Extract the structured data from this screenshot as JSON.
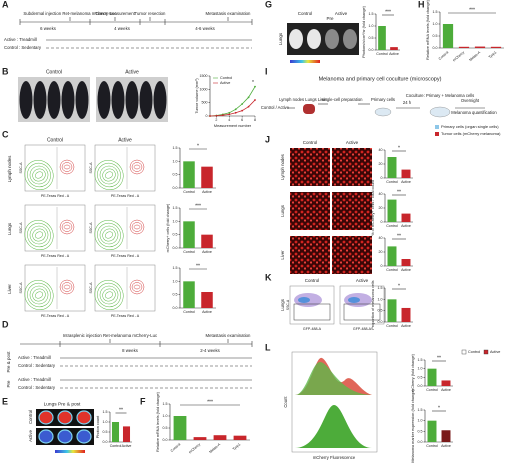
{
  "letters": [
    "A",
    "B",
    "C",
    "D",
    "E",
    "F",
    "G",
    "H",
    "I",
    "J",
    "K",
    "L"
  ],
  "A": {
    "labels": [
      "Subdermal injection Ret-melanoma mCherry-Luc",
      "Tumor measurement",
      "Tumor resection",
      "Metastasis examination"
    ],
    "durations": [
      "6 weeks",
      "4 weeks",
      "4-6 weeks"
    ],
    "groups": [
      "Active : Treadmill",
      "Control : Sedentary"
    ]
  },
  "B": {
    "columns": [
      "Control",
      "Active"
    ]
  },
  "C": {
    "columns": [
      "Control",
      "Active"
    ],
    "rows": [
      "Lymph nodes",
      "Lungs",
      "Liver"
    ],
    "xlabel": "PE-Texas Red - A",
    "ylabel": "SSC-A"
  },
  "D": {
    "labels": [
      "Intrasplenic injection Ret-melanoma mCherry-Luc",
      "Metastasis examination"
    ],
    "durations": [
      "8 weeks",
      "2-4 weeks"
    ],
    "groups": [
      "Active : Treadmill",
      "Control : Sedentary",
      "Active : Treadmill",
      "Control : Sedentary"
    ],
    "sides": [
      "Pre & post",
      "Pre"
    ]
  },
  "E": {
    "title": "Lungs Pre & post",
    "rows": [
      "Control",
      "Active"
    ]
  },
  "G": {
    "header": "Pre",
    "columns": [
      "Control",
      "Active"
    ],
    "row": "Lungs"
  },
  "I": {
    "title": "Melanoma and primary cell coculture (microscopy)",
    "steps": [
      "Control / Active",
      "Lymph nodes Lungs Liver",
      "single-cell preparation",
      "Primary cells",
      "24 h",
      "Coculture: Primary + Melanoma cells",
      "Overnight",
      "Melanoma quantification"
    ]
  },
  "J": {
    "columns": [
      "Control",
      "Active"
    ],
    "rows": [
      "Lymph nodes",
      "Lungs",
      "Liver"
    ],
    "legend": [
      "Primary cells (organ single cells)",
      "Tumor cells (mCherry melanoma)"
    ]
  },
  "K": {
    "columns": [
      "Control",
      "Active"
    ],
    "row": "Lungs",
    "xlabel": "GFP-488-A",
    "ylabel": "SSC-A"
  },
  "L": {
    "legend": [
      "Control",
      "Active"
    ],
    "ylabel": "Count",
    "xlabel": "mCherry Fluorescence"
  },
  "chart_data": [
    {
      "type": "line",
      "xlabel": "Measurement number",
      "ylabel": "Tumor volume (mm³)",
      "x": [
        1,
        2,
        3,
        4,
        5,
        6,
        7,
        8
      ],
      "xlim": [
        1,
        8
      ],
      "xticks": [
        2,
        4,
        6,
        8
      ],
      "ylim": [
        0,
        1500
      ],
      "yticks": [
        0,
        500,
        1000,
        1500
      ],
      "annotation": "*",
      "series": [
        {
          "name": "Control",
          "color": "#4dac3a",
          "values": [
            0,
            20,
            60,
            120,
            250,
            450,
            700,
            1100
          ]
        },
        {
          "name": "Active",
          "color": "#c8262c",
          "values": [
            0,
            10,
            30,
            60,
            120,
            200,
            350,
            600
          ]
        }
      ]
    },
    {
      "type": "bar",
      "categories": [
        "Control",
        "Active"
      ],
      "values": [
        1.0,
        0.8
      ],
      "colors": [
        "#4dac3a",
        "#c8262c"
      ],
      "ylim": [
        0,
        1.5
      ],
      "yticks": [
        {
          "value": 0,
          "label": "0.0"
        },
        0.5,
        {
          "value": 1,
          "label": "1.0"
        },
        1.5
      ],
      "annotation": "*"
    },
    {
      "type": "bar",
      "ylabel": "mCherry+ cells (fold change)",
      "categories": [
        "Control",
        "Active"
      ],
      "values": [
        1.0,
        0.5
      ],
      "colors": [
        "#4dac3a",
        "#c8262c"
      ],
      "ylim": [
        0,
        1.5
      ],
      "yticks": [
        {
          "value": 0,
          "label": "0.0"
        },
        0.5,
        {
          "value": 1,
          "label": "1.0"
        },
        1.5
      ],
      "annotation": "***"
    },
    {
      "type": "bar",
      "categories": [
        "Control",
        "Active"
      ],
      "values": [
        1.0,
        0.6
      ],
      "colors": [
        "#4dac3a",
        "#c8262c"
      ],
      "ylim": [
        0,
        1.5
      ],
      "yticks": [
        {
          "value": 0,
          "label": "0.0"
        },
        0.5,
        {
          "value": 1,
          "label": "1.0"
        },
        1.5
      ],
      "annotation": "**"
    },
    {
      "type": "bar",
      "ylabel": "Photon count",
      "categories": [
        "Control",
        "Active"
      ],
      "values": [
        1.0,
        0.78
      ],
      "colors": [
        "#4dac3a",
        "#c8262c"
      ],
      "ylim": [
        0,
        1.5
      ],
      "yticks": [
        {
          "value": 0,
          "label": "0.0"
        },
        0.5,
        {
          "value": 1,
          "label": "1.0"
        },
        1.5
      ],
      "annotation": "**"
    },
    {
      "type": "bar",
      "ylabel": "Relative mRNA levels (fold change)",
      "categories": [
        "Control",
        "mCherry",
        "Melan-A",
        "Tyrp1"
      ],
      "values": [
        1.0,
        0.12,
        0.2,
        0.18
      ],
      "colors": [
        "#4dac3a",
        "#c8262c",
        "#c8262c",
        "#c8262c"
      ],
      "ylim": [
        0,
        1.5
      ],
      "yticks": [
        {
          "value": 0,
          "label": "0.0"
        },
        0.5,
        {
          "value": 1,
          "label": "1.0"
        },
        1.5
      ],
      "annotation": "***"
    },
    {
      "type": "bar",
      "ylabel": "Photons/s/cm²/sr (fold change)",
      "categories": [
        "Control",
        "Active"
      ],
      "values": [
        1.0,
        0.12
      ],
      "colors": [
        "#4dac3a",
        "#c8262c"
      ],
      "ylim": [
        0,
        1.5
      ],
      "yticks": [
        {
          "value": 0,
          "label": "0.0"
        },
        0.5,
        {
          "value": 1,
          "label": "1.0"
        },
        1.5
      ],
      "annotation": "***"
    },
    {
      "type": "bar",
      "ylabel": "Relative mRNA levels (fold change)",
      "categories": [
        "Control",
        "mCherry",
        "Melan-A",
        "Tyrp1"
      ],
      "values": [
        1.0,
        0.05,
        0.06,
        0.05
      ],
      "colors": [
        "#4dac3a",
        "#c8262c",
        "#c8262c",
        "#c8262c"
      ],
      "ylim": [
        0,
        1.5
      ],
      "yticks": [
        {
          "value": 0,
          "label": "0.0"
        },
        0.5,
        {
          "value": 1,
          "label": "1.0"
        },
        1.5
      ],
      "annotation": "***"
    },
    {
      "type": "bar",
      "categories": [
        "Control",
        "Active"
      ],
      "values": [
        30,
        12
      ],
      "colors": [
        "#4dac3a",
        "#c8262c"
      ],
      "ylim": [
        0,
        40
      ],
      "yticks": [
        0,
        20,
        40
      ],
      "annotation": "*"
    },
    {
      "type": "bar",
      "ylabel": "% of mCherry+ cells / Total count",
      "categories": [
        "Control",
        "Active"
      ],
      "values": [
        32,
        12
      ],
      "colors": [
        "#4dac3a",
        "#c8262c"
      ],
      "ylim": [
        0,
        40
      ],
      "yticks": [
        0,
        20,
        40
      ],
      "annotation": "**"
    },
    {
      "type": "bar",
      "categories": [
        "Control",
        "Active"
      ],
      "values": [
        28,
        10
      ],
      "colors": [
        "#4dac3a",
        "#c8262c"
      ],
      "ylim": [
        0,
        40
      ],
      "yticks": [
        0,
        20,
        40
      ],
      "annotation": "**"
    },
    {
      "type": "bar",
      "ylabel": "Proportion of melanoma cells",
      "categories": [
        "Control",
        "Active"
      ],
      "values": [
        1.0,
        0.62
      ],
      "colors": [
        "#4dac3a",
        "#c8262c"
      ],
      "ylim": [
        0,
        1.5
      ],
      "yticks": [
        {
          "value": 0,
          "label": "0.0"
        },
        0.5,
        {
          "value": 1,
          "label": "1.0"
        },
        1.5
      ],
      "annotation": "*"
    },
    {
      "type": "bar",
      "ylabel": "mCherry (fold change)",
      "categories": [
        "Control",
        "Active"
      ],
      "values": [
        1.0,
        0.32
      ],
      "colors": [
        "#4dac3a",
        "#c8262c"
      ],
      "ylim": [
        0,
        1.5
      ],
      "yticks": [
        {
          "value": 0,
          "label": "0.0"
        },
        0.5,
        {
          "value": 1,
          "label": "1.0"
        },
        1.5
      ],
      "annotation": "**"
    },
    {
      "type": "bar",
      "ylabel": "Melanoma marker expression (fold change)",
      "categories": [
        "Control",
        "Active"
      ],
      "values": [
        1.0,
        0.55
      ],
      "colors": [
        "#4dac3a",
        "#7a1a1a"
      ],
      "ylim": [
        0,
        1.5
      ],
      "yticks": [
        {
          "value": 0,
          "label": "0.0"
        },
        0.5,
        {
          "value": 1,
          "label": "1.0"
        },
        1.5
      ],
      "annotation": "*"
    }
  ]
}
